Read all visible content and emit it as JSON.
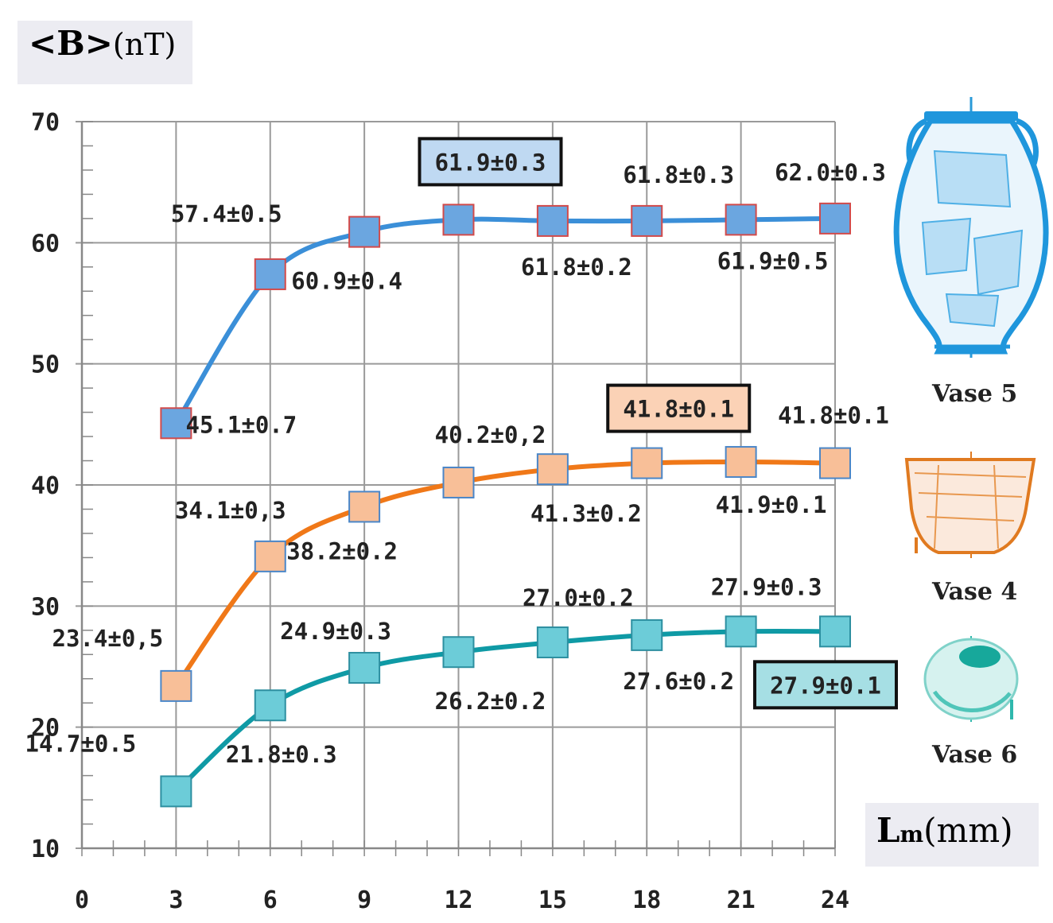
{
  "axis_labels": {
    "y_symbol": "<B>",
    "y_unit": "(nT)",
    "x_symbol": "L",
    "x_sub": "m",
    "x_unit": "(mm)"
  },
  "vase_labels": [
    "Vase 5",
    "Vase 4",
    "Vase 6"
  ],
  "chart_data": {
    "type": "line",
    "title": "",
    "xlabel": "Lm(mm)",
    "ylabel": "<B>(nT)",
    "xlim": [
      0,
      24
    ],
    "ylim": [
      10,
      70
    ],
    "x_ticks": [
      0,
      3,
      6,
      9,
      12,
      15,
      18,
      21,
      24
    ],
    "y_ticks": [
      10,
      20,
      30,
      40,
      50,
      60,
      70
    ],
    "grid": true,
    "x": [
      3,
      6,
      9,
      12,
      15,
      18,
      21,
      24
    ],
    "series": [
      {
        "id": "vase5",
        "color": "#3b8fd8",
        "marker_fill": "#6ba6e0",
        "marker_edge": "#d24a4a",
        "values": [
          45.1,
          57.4,
          60.9,
          61.9,
          61.8,
          61.8,
          61.9,
          62.0
        ],
        "labels": [
          "45.1±0.7",
          "57.4±0.5",
          "60.9±0.4",
          "61.9±0.3",
          "61.8±0.2",
          "61.8±0.3",
          "61.9±0.5",
          "62.0±0.3"
        ],
        "highlight_index": 3,
        "highlight_fill": "#bfd9f2"
      },
      {
        "id": "vase4",
        "color": "#f07818",
        "marker_fill": "#f8bf98",
        "marker_edge": "#4a86c8",
        "values": [
          23.4,
          34.1,
          38.2,
          40.2,
          41.3,
          41.8,
          41.9,
          41.8
        ],
        "labels": [
          "23.4±0,5",
          "34.1±0,3",
          "38.2±0.2",
          "40.2±0,2",
          "41.3±0.2",
          "41.8±0.1",
          "41.9±0.1",
          "41.8±0.1"
        ],
        "highlight_index": 5,
        "highlight_fill": "#fbd2b6"
      },
      {
        "id": "vase6",
        "color": "#0f9aa5",
        "marker_fill": "#6cccd8",
        "marker_edge": "#2d8fa0",
        "values": [
          14.7,
          21.8,
          24.9,
          26.2,
          27.0,
          27.6,
          27.9,
          27.9
        ],
        "labels": [
          "14.7±0.5",
          "21.8±0.3",
          "24.9±0.3",
          "26.2±0.2",
          "27.0±0.2",
          "27.6±0.2",
          "27.9±0.3",
          "27.9±0.1"
        ],
        "highlight_index": 7,
        "highlight_fill": "#a6dfe4"
      }
    ]
  }
}
